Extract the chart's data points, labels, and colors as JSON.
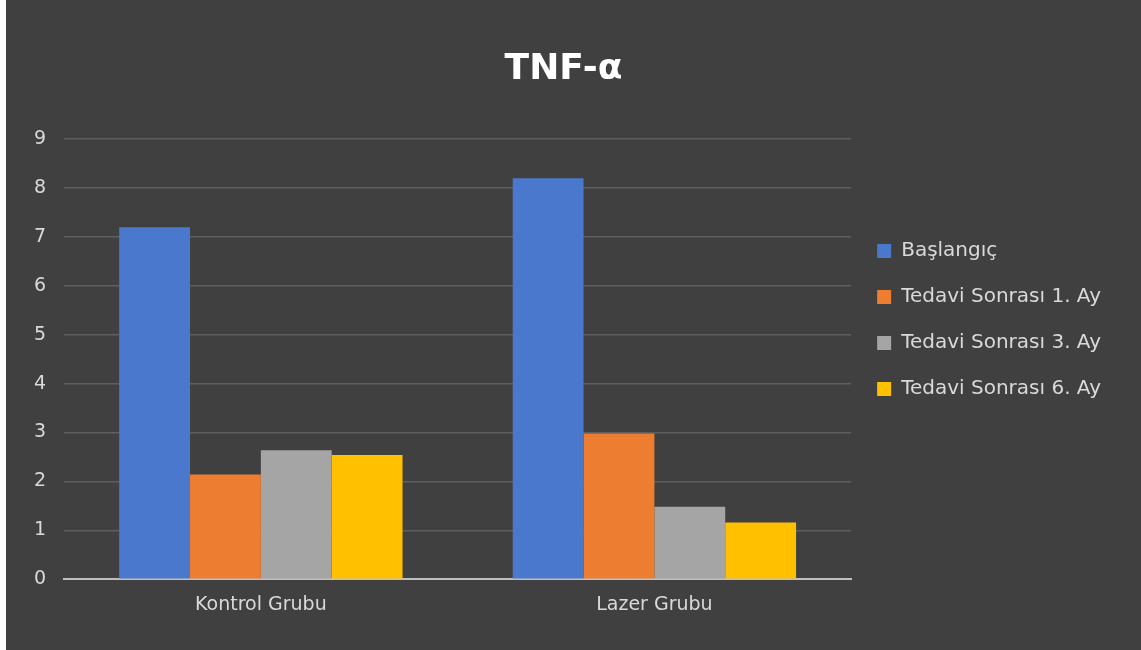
{
  "chart_data": {
    "type": "bar",
    "title": "TNF-α",
    "categories": [
      "Kontrol Grubu",
      "Lazer Grubu"
    ],
    "series": [
      {
        "name": "Başlangıç",
        "color": "#4a78cc",
        "values": [
          7.2,
          8.2
        ]
      },
      {
        "name": "Tedavi Sonrası 1. Ay",
        "color": "#ed7d31",
        "values": [
          2.14,
          2.98
        ]
      },
      {
        "name": "Tedavi Sonrası 3. Ay",
        "color": "#a5a5a5",
        "values": [
          2.64,
          1.48
        ]
      },
      {
        "name": "Tedavi Sonrası 6. Ay",
        "color": "#ffc000",
        "values": [
          2.54,
          1.16
        ]
      }
    ],
    "ylim": [
      0,
      9
    ],
    "yticks": [
      0,
      1,
      2,
      3,
      4,
      5,
      6,
      7,
      8,
      9
    ],
    "grid": "y",
    "legend": "right"
  }
}
